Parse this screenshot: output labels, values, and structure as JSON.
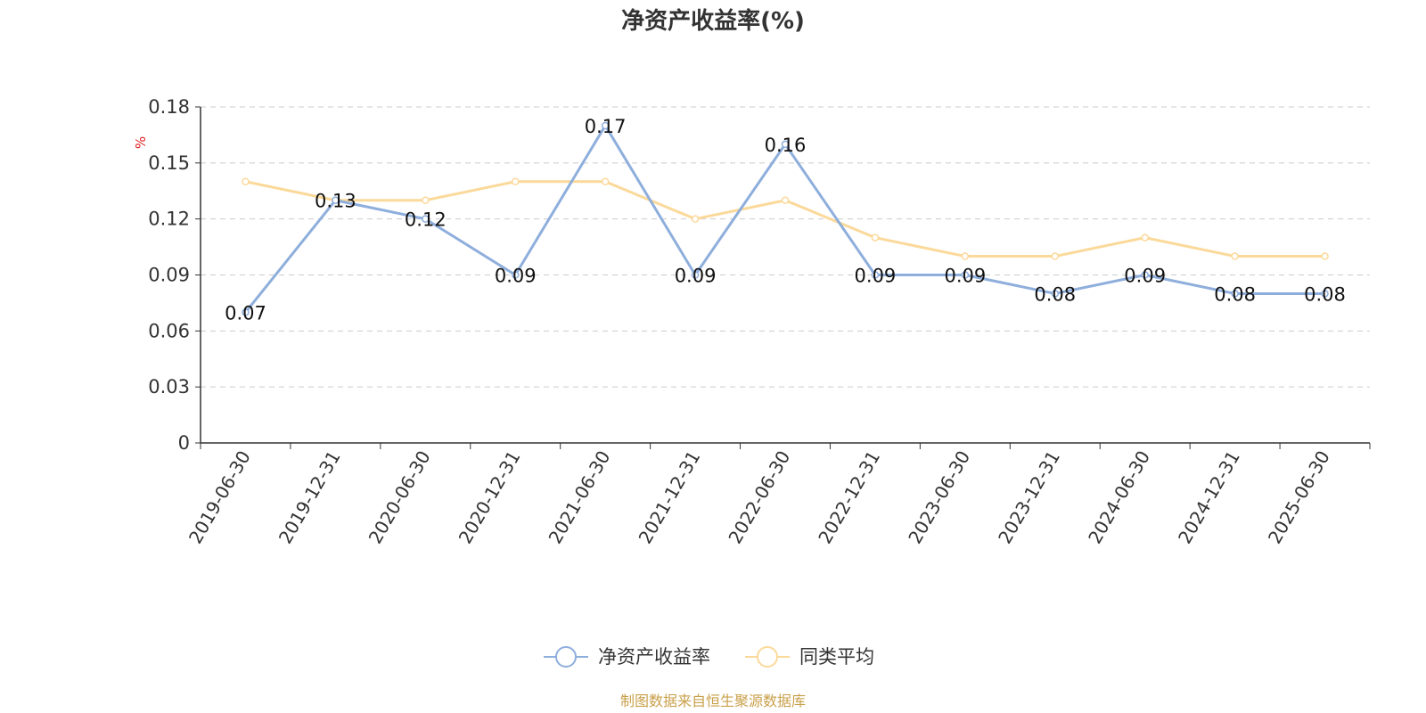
{
  "chart_data": {
    "type": "line",
    "title": "净资产收益率(%)",
    "ylabel": "%",
    "categories": [
      "2019-06-30",
      "2019-12-31",
      "2020-06-30",
      "2020-12-31",
      "2021-06-30",
      "2021-12-31",
      "2022-06-30",
      "2022-12-31",
      "2023-06-30",
      "2023-12-31",
      "2024-06-30",
      "2024-12-31",
      "2025-06-30"
    ],
    "yticks": [
      "0",
      "0.03",
      "0.06",
      "0.09",
      "0.12",
      "0.15",
      "0.18"
    ],
    "ylim": [
      0,
      0.18
    ],
    "grid": true,
    "legend_position": "bottom",
    "series": [
      {
        "name": "净资产收益率",
        "color": "#8eaedc",
        "values": [
          0.07,
          0.13,
          0.12,
          0.09,
          0.17,
          0.09,
          0.16,
          0.09,
          0.09,
          0.08,
          0.09,
          0.08,
          0.08
        ],
        "labels": [
          "0.07",
          "0.13",
          "0.12",
          "0.09",
          "0.17",
          "0.09",
          "0.16",
          "0.09",
          "0.09",
          "0.08",
          "0.09",
          "0.08",
          "0.08"
        ]
      },
      {
        "name": "同类平均",
        "color": "#fbd99a",
        "values": [
          0.14,
          0.13,
          0.13,
          0.14,
          0.14,
          0.12,
          0.13,
          0.11,
          0.1,
          0.1,
          0.11,
          0.1,
          0.1
        ]
      }
    ]
  },
  "footer": {
    "source": "制图数据来自恒生聚源数据库",
    "source_color": "#c9a04a"
  },
  "colors": {
    "unit": "#e02020",
    "axis": "#333333",
    "grid": "#cccccc"
  }
}
